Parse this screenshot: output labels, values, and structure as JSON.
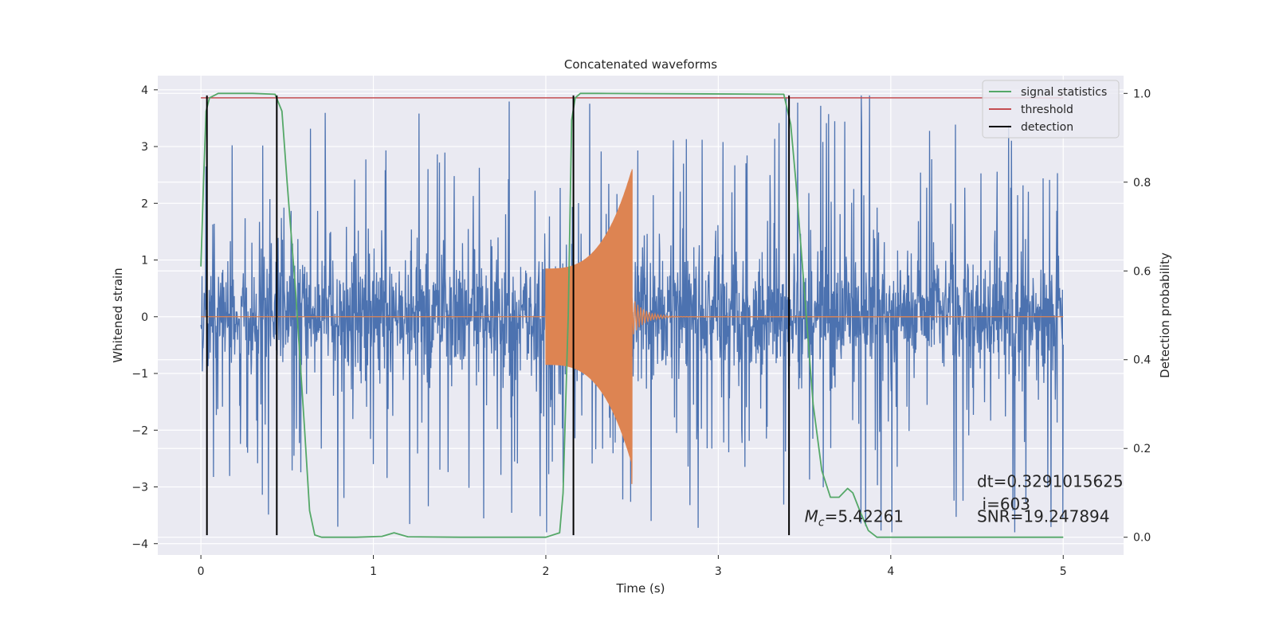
{
  "chart_data": {
    "type": "line",
    "title": "Concatenated waveforms",
    "xlabel": "Time (s)",
    "ylabel": "Whitened strain",
    "y2label": "Detection probability",
    "xlim": [
      -0.25,
      5.35
    ],
    "ylim": [
      -4.2,
      4.25
    ],
    "y2lim": [
      -0.04,
      1.04
    ],
    "xticks": [
      0,
      1,
      2,
      3,
      4,
      5
    ],
    "yticks": [
      -4,
      -3,
      -2,
      -1,
      0,
      1,
      2,
      3,
      4
    ],
    "y2ticks": [
      0.0,
      0.2,
      0.4,
      0.6,
      0.8,
      1.0
    ],
    "grid": true,
    "legend_position": "top-right",
    "colors": {
      "strain": "#4c72b0",
      "injection": "#dd8452",
      "signal": "#55a868",
      "threshold": "#c44e52",
      "detection": "#000000",
      "background": "#eaeaf2",
      "grid": "#ffffff"
    },
    "series": [
      {
        "name": "",
        "axis": "left",
        "kind": "noise",
        "x_range": [
          0,
          5
        ],
        "core_amplitude": 0.85,
        "spike_max": 3.9,
        "spike_min": -3.8
      },
      {
        "name": "",
        "axis": "left",
        "kind": "chirp",
        "x_range": [
          2.0,
          2.5
        ],
        "start_amplitude": 0.85,
        "peak_amplitude": 2.6,
        "min_value": -2.95
      },
      {
        "name": "signal statistics",
        "axis": "right",
        "x": [
          0,
          0.015,
          0.03,
          0.05,
          0.1,
          0.3,
          0.43,
          0.47,
          0.5,
          0.55,
          0.6,
          0.63,
          0.66,
          0.7,
          0.9,
          1.05,
          1.12,
          1.2,
          1.5,
          2.0,
          2.08,
          2.1,
          2.13,
          2.15,
          2.17,
          2.2,
          2.3,
          3.38,
          3.42,
          3.45,
          3.5,
          3.55,
          3.6,
          3.65,
          3.7,
          3.75,
          3.78,
          3.82,
          3.87,
          3.92,
          4.0,
          5.0
        ],
        "values": [
          0.61,
          0.8,
          0.96,
          0.99,
          1.0,
          1.0,
          0.998,
          0.96,
          0.8,
          0.55,
          0.25,
          0.06,
          0.005,
          0.0,
          0.0,
          0.002,
          0.01,
          0.001,
          0.0,
          0.0,
          0.01,
          0.1,
          0.5,
          0.94,
          0.99,
          1.0,
          1.0,
          0.998,
          0.93,
          0.8,
          0.55,
          0.3,
          0.15,
          0.09,
          0.09,
          0.11,
          0.1,
          0.06,
          0.015,
          0.0,
          0.0,
          0.0
        ]
      },
      {
        "name": "threshold",
        "axis": "right",
        "x": [
          0,
          5
        ],
        "values": [
          0.99,
          0.99
        ]
      },
      {
        "name": "detection",
        "axis": "left",
        "x": [
          0.035,
          0.44,
          2.16,
          3.41
        ],
        "y_range": [
          -3.85,
          3.9
        ]
      }
    ],
    "annotations": [
      {
        "text": "dt=0.3291015625",
        "x": 4.5,
        "y": -3.0
      },
      {
        "text": "i=603",
        "x": 4.53,
        "y": -3.4
      },
      {
        "text": "SNR=19.247894",
        "x": 4.5,
        "y": -3.62
      },
      {
        "text_main": "M",
        "text_sub": "c",
        "text_rest": "=5.42261",
        "x": 3.5,
        "y": -3.62
      }
    ]
  }
}
